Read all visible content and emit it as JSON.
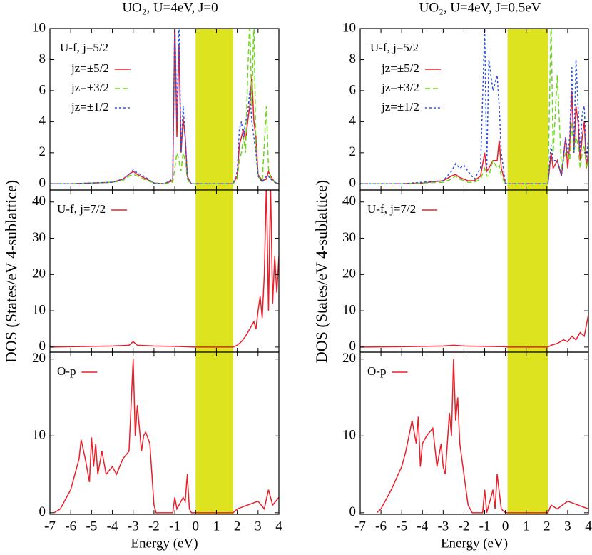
{
  "chart_data": [
    {
      "type": "line",
      "title": "UO₂, U=4eV, J=0",
      "annotation": "U-f, j=5/2",
      "xlim": [
        -7,
        4
      ],
      "xticks": [
        -7,
        -6,
        -5,
        -4,
        -3,
        -2,
        -1,
        0,
        1,
        2,
        3,
        4
      ],
      "ylim": [
        -0.4,
        10
      ],
      "yticks": [
        0,
        2,
        4,
        6,
        8,
        10
      ],
      "shade": [
        0,
        1.8
      ],
      "shade_color": "#dde31f",
      "x": [
        -7,
        -6,
        -5,
        -4,
        -3.5,
        -3.2,
        -3,
        -2.8,
        -2.5,
        -2,
        -1.5,
        -1.1,
        -1,
        -0.9,
        -0.8,
        -0.7,
        -0.6,
        -0.5,
        -0.4,
        -0.3,
        -0.2,
        0,
        1.8,
        2,
        2.1,
        2.2,
        2.3,
        2.4,
        2.5,
        2.6,
        2.7,
        2.8,
        2.9,
        3,
        3.2,
        3.4,
        3.5,
        3.6,
        3.8,
        4
      ],
      "series": [
        {
          "name": "jz=±5/2",
          "color": "#e8202a",
          "dash": "none",
          "values": [
            0,
            0,
            0.05,
            0.1,
            0.3,
            0.6,
            0.8,
            0.6,
            0.4,
            0.05,
            0,
            0.2,
            10.5,
            3,
            9,
            2,
            4.2,
            3,
            0.5,
            0.2,
            0,
            0,
            0,
            0.5,
            2.5,
            3,
            3.5,
            2.8,
            4,
            5,
            7,
            4,
            3,
            0.6,
            0.2,
            0.3,
            0.8,
            0.5,
            0.1,
            0
          ]
        },
        {
          "name": "jz=±3/2",
          "color": "#6ed61e",
          "dash": "7 4",
          "values": [
            0,
            0,
            0.05,
            0.1,
            0.2,
            0.5,
            0.6,
            0.5,
            0.3,
            0.05,
            0,
            0.1,
            1,
            2,
            1.5,
            0.8,
            2,
            1.5,
            0.3,
            0.1,
            0,
            0,
            0,
            0.3,
            1.5,
            2,
            3,
            2,
            7,
            10.5,
            5,
            10.5,
            2,
            0.5,
            0.1,
            5,
            1,
            0.4,
            0.1,
            0
          ]
        },
        {
          "name": "jz=±1/2",
          "color": "#2a52e0",
          "dash": "3 3",
          "values": [
            0,
            0,
            0.05,
            0.1,
            0.3,
            0.6,
            0.9,
            0.7,
            0.5,
            0.05,
            0,
            0.3,
            10.5,
            4,
            10.5,
            2,
            5,
            3,
            0.5,
            0.2,
            0,
            0,
            0,
            0.8,
            3.5,
            4,
            3,
            4,
            4.5,
            6,
            4,
            3,
            2,
            0.5,
            0.1,
            0.5,
            0.5,
            0.3,
            0.1,
            0
          ]
        }
      ]
    },
    {
      "type": "line",
      "ylabel": "DOS (States/eV 4-sublattice)",
      "xlim": [
        -7,
        4
      ],
      "xticks": [
        -7,
        -6,
        -5,
        -4,
        -3,
        -2,
        -1,
        0,
        1,
        2,
        3,
        4
      ],
      "ylim": [
        -1.4,
        43.3
      ],
      "yticks": [
        0,
        10,
        20,
        30,
        40
      ],
      "shade": [
        0,
        1.8
      ],
      "shade_color": "#dde31f",
      "x": [
        -7,
        -6,
        -5,
        -4,
        -3.2,
        -3,
        -2.8,
        -2,
        -1,
        -0.5,
        0,
        1.8,
        2,
        2.2,
        2.4,
        2.6,
        2.8,
        2.9,
        3,
        3.1,
        3.2,
        3.3,
        3.4,
        3.5,
        3.6,
        3.7,
        3.8,
        3.9,
        4
      ],
      "series": [
        {
          "name": "U-f, j=7/2",
          "color": "#e8202a",
          "dash": "none",
          "values": [
            0,
            0.1,
            0.2,
            0.3,
            0.5,
            1.5,
            0.5,
            0.3,
            0.2,
            0.1,
            0,
            0,
            0.5,
            1.5,
            3,
            5,
            7,
            5,
            10,
            14,
            8,
            20,
            45,
            10,
            45,
            12,
            25,
            15,
            25
          ]
        }
      ]
    },
    {
      "type": "line",
      "xlabel": "Energy (eV)",
      "xlim": [
        -7,
        4
      ],
      "xticks": [
        -7,
        -6,
        -5,
        -4,
        -3,
        -2,
        -1,
        0,
        1,
        2,
        3,
        4
      ],
      "ylim": [
        -0.2,
        20.9
      ],
      "yticks": [
        0,
        10,
        20
      ],
      "shade": [
        0,
        1.8
      ],
      "shade_color": "#dde31f",
      "x": [
        -6.8,
        -6.5,
        -6,
        -5.6,
        -5.5,
        -5.3,
        -5.1,
        -5,
        -4.9,
        -4.8,
        -4.7,
        -4.5,
        -4.3,
        -4,
        -3.8,
        -3.5,
        -3.2,
        -3.1,
        -3,
        -2.9,
        -2.8,
        -2.6,
        -2.5,
        -2.4,
        -2.2,
        -2.1,
        -2,
        -1.9,
        -1.5,
        -1.1,
        -1,
        -0.9,
        -0.8,
        -0.6,
        -0.5,
        -0.4,
        -0.3,
        -0.2,
        0,
        1.8,
        2,
        2.5,
        3,
        3.3,
        3.5,
        3.7,
        4
      ],
      "series": [
        {
          "name": "O-p",
          "color": "#e8202a",
          "dash": "none",
          "values": [
            0,
            0.5,
            3,
            7,
            9.5,
            7,
            4,
            9.8,
            6,
            9,
            5,
            8,
            5,
            6,
            5,
            7,
            8,
            14,
            20,
            10,
            14,
            8,
            10,
            10.5,
            9,
            5,
            1,
            0,
            0,
            0,
            2,
            0.5,
            1,
            2,
            1.5,
            5,
            0.5,
            0,
            0,
            0,
            0.5,
            1,
            1.5,
            0.5,
            3,
            1,
            2
          ]
        }
      ]
    },
    {
      "type": "line",
      "title": "UO₂, U=4eV, J=0.5eV",
      "annotation": "U-f, j=5/2",
      "xlim": [
        -7,
        4
      ],
      "xticks": [
        -7,
        -6,
        -5,
        -4,
        -3,
        -2,
        -1,
        0,
        1,
        2,
        3,
        4
      ],
      "ylim": [
        -0.4,
        10
      ],
      "yticks": [
        0,
        2,
        4,
        6,
        8,
        10
      ],
      "shade": [
        0.1,
        2.05
      ],
      "shade_color": "#dde31f",
      "x": [
        -7,
        -6,
        -5,
        -4,
        -3,
        -2.6,
        -2.4,
        -2.2,
        -2,
        -1.8,
        -1.5,
        -1.2,
        -1,
        -0.9,
        -0.8,
        -0.6,
        -0.4,
        -0.3,
        -0.2,
        0,
        0.1,
        2.05,
        2.2,
        2.3,
        2.5,
        2.7,
        2.9,
        3,
        3.1,
        3.2,
        3.3,
        3.4,
        3.5,
        3.6,
        3.7,
        3.8,
        3.9,
        4
      ],
      "series": [
        {
          "name": "jz=±5/2",
          "color": "#e8202a",
          "dash": "none",
          "values": [
            0,
            0,
            0,
            0.05,
            0.2,
            0.5,
            0.6,
            0.4,
            0.3,
            0.2,
            0.2,
            0.5,
            2,
            0.8,
            1,
            1.5,
            1.5,
            2.8,
            1,
            0,
            0,
            0,
            2,
            1,
            1.5,
            0.5,
            3,
            1,
            2.5,
            6,
            2,
            5,
            4,
            1.5,
            3,
            4,
            1,
            2
          ]
        },
        {
          "name": "jz=±3/2",
          "color": "#6ed61e",
          "dash": "7 4",
          "values": [
            0,
            0,
            0,
            0.05,
            0.1,
            0.3,
            0.5,
            0.3,
            0.2,
            0.1,
            0.1,
            0.3,
            1,
            0.5,
            0.5,
            1.5,
            1,
            1.2,
            0.5,
            0,
            0,
            0,
            10.5,
            2,
            7,
            1,
            2,
            2,
            1.5,
            4,
            2,
            3,
            2.5,
            1,
            2,
            2.5,
            1,
            1.5
          ]
        },
        {
          "name": "jz=±1/2",
          "color": "#2a52e0",
          "dash": "3 3",
          "values": [
            0,
            0,
            0,
            0.1,
            0.2,
            0.8,
            1.3,
            1,
            1.2,
            0.8,
            0.3,
            1,
            10,
            1,
            8,
            6,
            7,
            5,
            2,
            0,
            0,
            0,
            2.5,
            1.5,
            1.5,
            0.5,
            3,
            2,
            3,
            7.5,
            2,
            8,
            5,
            2,
            4.5,
            5,
            1.5,
            3
          ]
        }
      ]
    },
    {
      "type": "line",
      "ylabel": "DOS (States/eV 4-sublattice)",
      "xlim": [
        -7,
        4
      ],
      "xticks": [
        -7,
        -6,
        -5,
        -4,
        -3,
        -2,
        -1,
        0,
        1,
        2,
        3,
        4
      ],
      "ylim": [
        -1.4,
        43.3
      ],
      "yticks": [
        0,
        10,
        20,
        30,
        40
      ],
      "shade": [
        0.1,
        2.05
      ],
      "shade_color": "#dde31f",
      "x": [
        -7,
        -5,
        -4,
        -3,
        -2.5,
        -2,
        -1,
        0,
        0.1,
        2.05,
        2.2,
        2.5,
        2.8,
        3,
        3.2,
        3.4,
        3.6,
        3.8,
        3.9,
        4
      ],
      "series": [
        {
          "name": "U-f, j=7/2",
          "color": "#e8202a",
          "dash": "none",
          "values": [
            0,
            0.1,
            0.2,
            0.3,
            0.5,
            0.3,
            0.2,
            0.1,
            0,
            0,
            0.5,
            1,
            2,
            1.5,
            3,
            2,
            4,
            3,
            6,
            9
          ]
        }
      ]
    },
    {
      "type": "line",
      "xlabel": "Energy (eV)",
      "xlim": [
        -7,
        4
      ],
      "xticks": [
        -7,
        -6,
        -5,
        -4,
        -3,
        -2,
        -1,
        0,
        1,
        2,
        3,
        4
      ],
      "ylim": [
        -0.2,
        20.9
      ],
      "yticks": [
        0,
        10,
        20
      ],
      "shade": [
        0.1,
        2.05
      ],
      "shade_color": "#dde31f",
      "x": [
        -6.2,
        -6,
        -5.5,
        -5,
        -4.8,
        -4.5,
        -4.3,
        -4.2,
        -4.1,
        -4,
        -3.8,
        -3.5,
        -3.3,
        -3.1,
        -3,
        -2.9,
        -2.7,
        -2.6,
        -2.5,
        -2.4,
        -2.3,
        -2.2,
        -2,
        -1.8,
        -1.6,
        -1.5,
        -1.1,
        -1,
        -0.9,
        -0.8,
        -0.6,
        -0.5,
        -0.4,
        -0.2,
        0,
        0.1,
        2.05,
        2.2,
        2.5,
        3,
        3.5,
        4
      ],
      "series": [
        {
          "name": "O-p",
          "color": "#e8202a",
          "dash": "none",
          "values": [
            0,
            0.5,
            3,
            6,
            8,
            12,
            9,
            12.5,
            6,
            9,
            10,
            11,
            6,
            9,
            6,
            5,
            13,
            10,
            20,
            12,
            15,
            9,
            5,
            1,
            0,
            0,
            0,
            3,
            0,
            1,
            3,
            0.5,
            5,
            0.5,
            0,
            0,
            0,
            1,
            0.5,
            1.5,
            1,
            0.5
          ]
        }
      ]
    }
  ]
}
